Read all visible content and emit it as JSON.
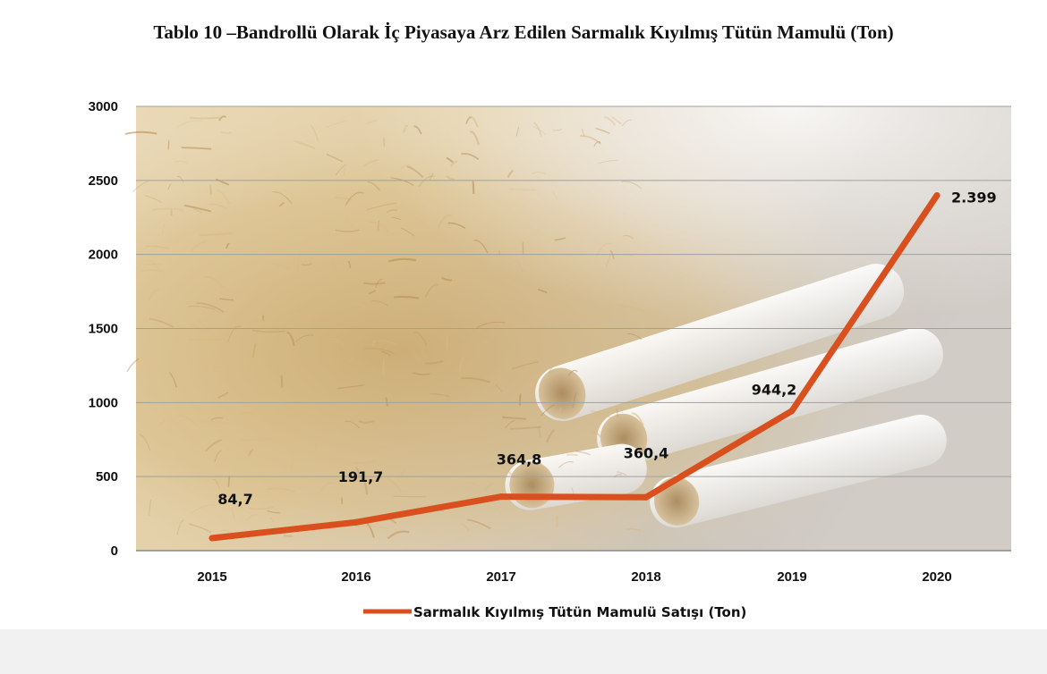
{
  "chart_data": {
    "type": "line",
    "title": "Tablo 10 –Bandrollü Olarak İç Piyasaya Arz Edilen Sarmalık Kıyılmış Tütün Mamulü (Ton)",
    "categories": [
      "2015",
      "2016",
      "2017",
      "2018",
      "2019",
      "2020"
    ],
    "series": [
      {
        "name": "Sarmalık Kıyılmış Tütün Mamulü Satışı (Ton)",
        "values": [
          84.7,
          191.7,
          364.8,
          360.4,
          944.2,
          2399
        ],
        "labels": [
          "84,7",
          "191,7",
          "364,8",
          "360,4",
          "944,2",
          "2.399"
        ],
        "color": "#d9501e"
      }
    ],
    "ylim": [
      0,
      3000
    ],
    "yticks": [
      0,
      500,
      1000,
      1500,
      2000,
      2500,
      3000
    ],
    "grid": true,
    "legend": "bottom-center",
    "colors": {
      "line": "#d9501e",
      "grid": "#a0a0a0",
      "tobacco_light": "#e2cda3",
      "tobacco_dark": "#c9a86d",
      "background_gray": "#c8c3bc",
      "cigarette": "#f4f4f2"
    }
  }
}
